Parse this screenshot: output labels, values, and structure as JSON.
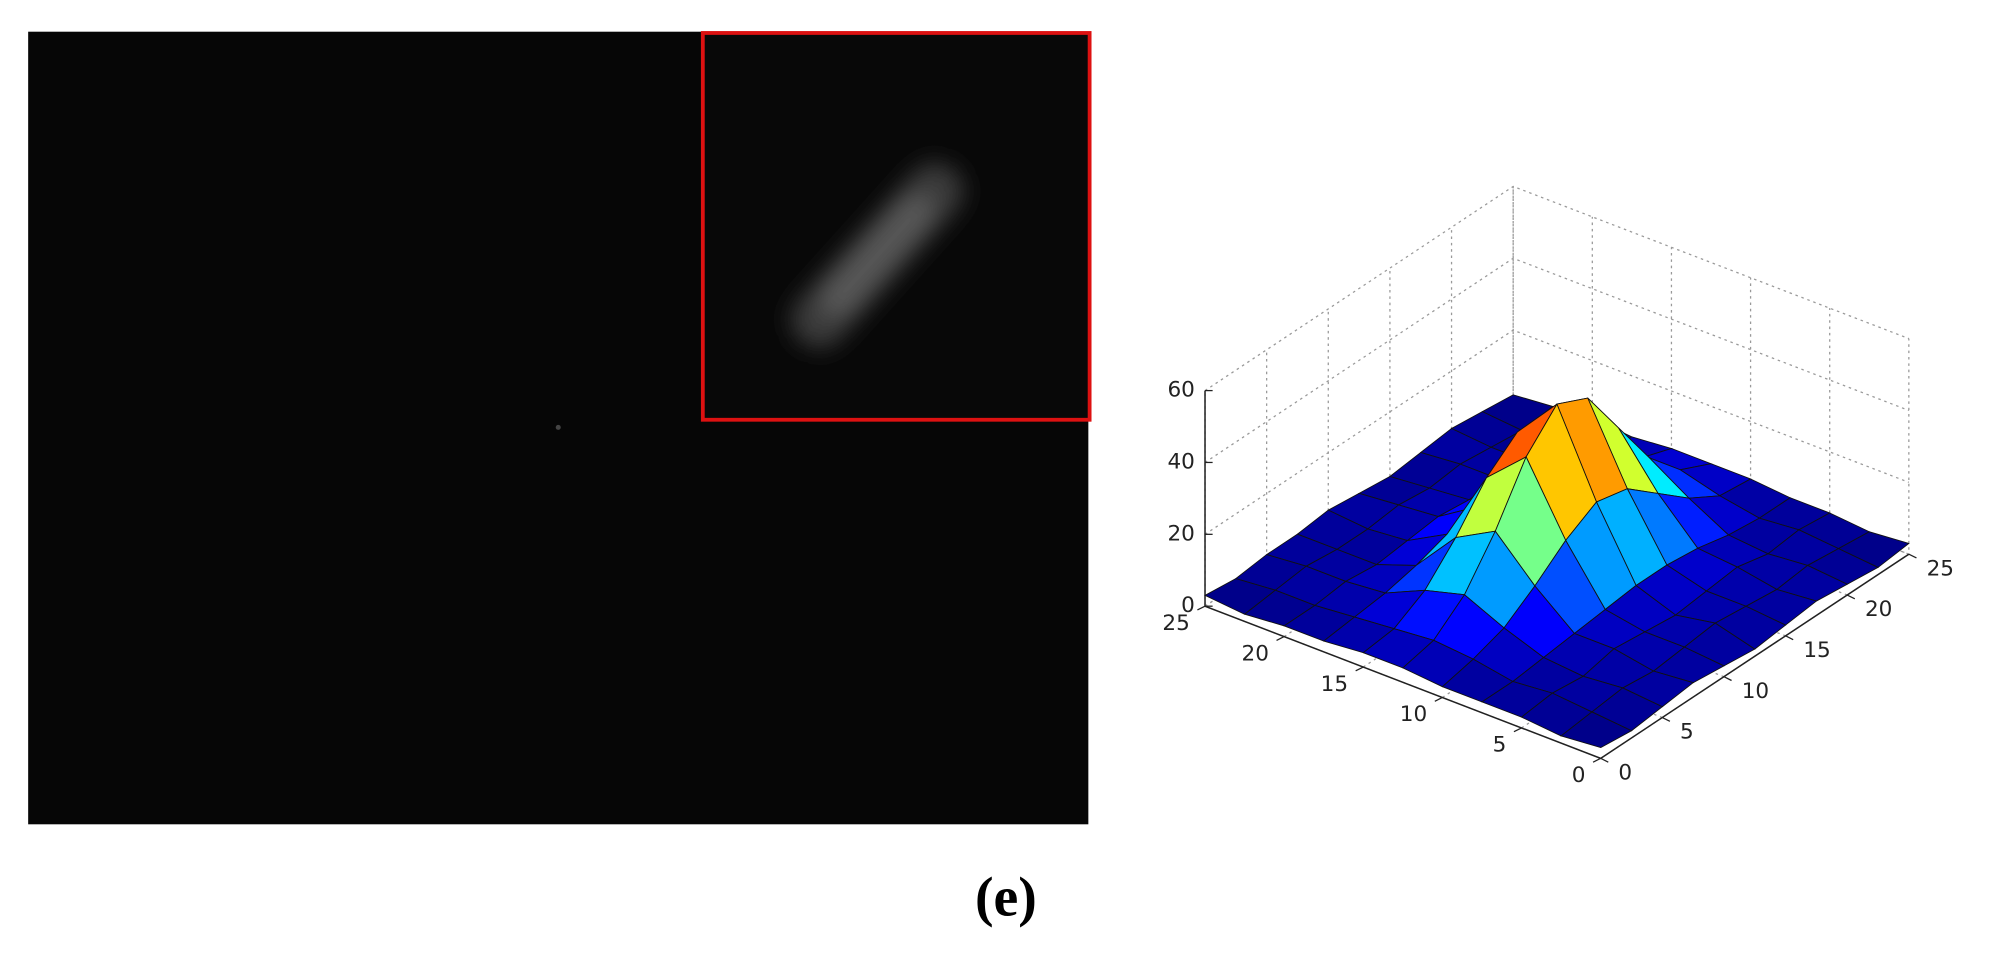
{
  "panel_label": "(e)",
  "chart_data": {
    "type": "surface",
    "x": [
      0,
      2.5,
      5,
      7.5,
      10,
      12.5,
      15,
      17.5,
      20,
      22.5,
      25
    ],
    "y": [
      0,
      2.5,
      5,
      7.5,
      10,
      12.5,
      15,
      17.5,
      20,
      22.5,
      25
    ],
    "z": [
      [
        3,
        2,
        3,
        4,
        3,
        2,
        3,
        4,
        3,
        2,
        3
      ],
      [
        2,
        3,
        4,
        3,
        4,
        5,
        4,
        3,
        4,
        3,
        2
      ],
      [
        3,
        4,
        3,
        5,
        4,
        3,
        4,
        5,
        3,
        4,
        3
      ],
      [
        3,
        3,
        4,
        5,
        6,
        7,
        7,
        6,
        4,
        3,
        3
      ],
      [
        3,
        5,
        8,
        14,
        21,
        26,
        24,
        17,
        10,
        5,
        4
      ],
      [
        4,
        6,
        13,
        25,
        40,
        49,
        45,
        31,
        17,
        8,
        4
      ],
      [
        4,
        5,
        10,
        19,
        30,
        37,
        34,
        24,
        13,
        7,
        4
      ],
      [
        3,
        4,
        5,
        7,
        10,
        12,
        11,
        9,
        6,
        4,
        3
      ],
      [
        3,
        3,
        4,
        3,
        4,
        5,
        4,
        4,
        3,
        3,
        4
      ],
      [
        2,
        3,
        4,
        3,
        3,
        4,
        3,
        4,
        3,
        2,
        3
      ],
      [
        3,
        2,
        3,
        3,
        4,
        3,
        2,
        3,
        4,
        3,
        2
      ]
    ],
    "xlim": [
      0,
      25
    ],
    "xticks": [
      0,
      5,
      10,
      15,
      20,
      25
    ],
    "ylim": [
      0,
      25
    ],
    "yticks": [
      0,
      5,
      10,
      15,
      20,
      25
    ],
    "zlim": [
      0,
      60
    ],
    "zticks": [
      0,
      20,
      40,
      60
    ],
    "grid": true,
    "colormap": "jet"
  }
}
